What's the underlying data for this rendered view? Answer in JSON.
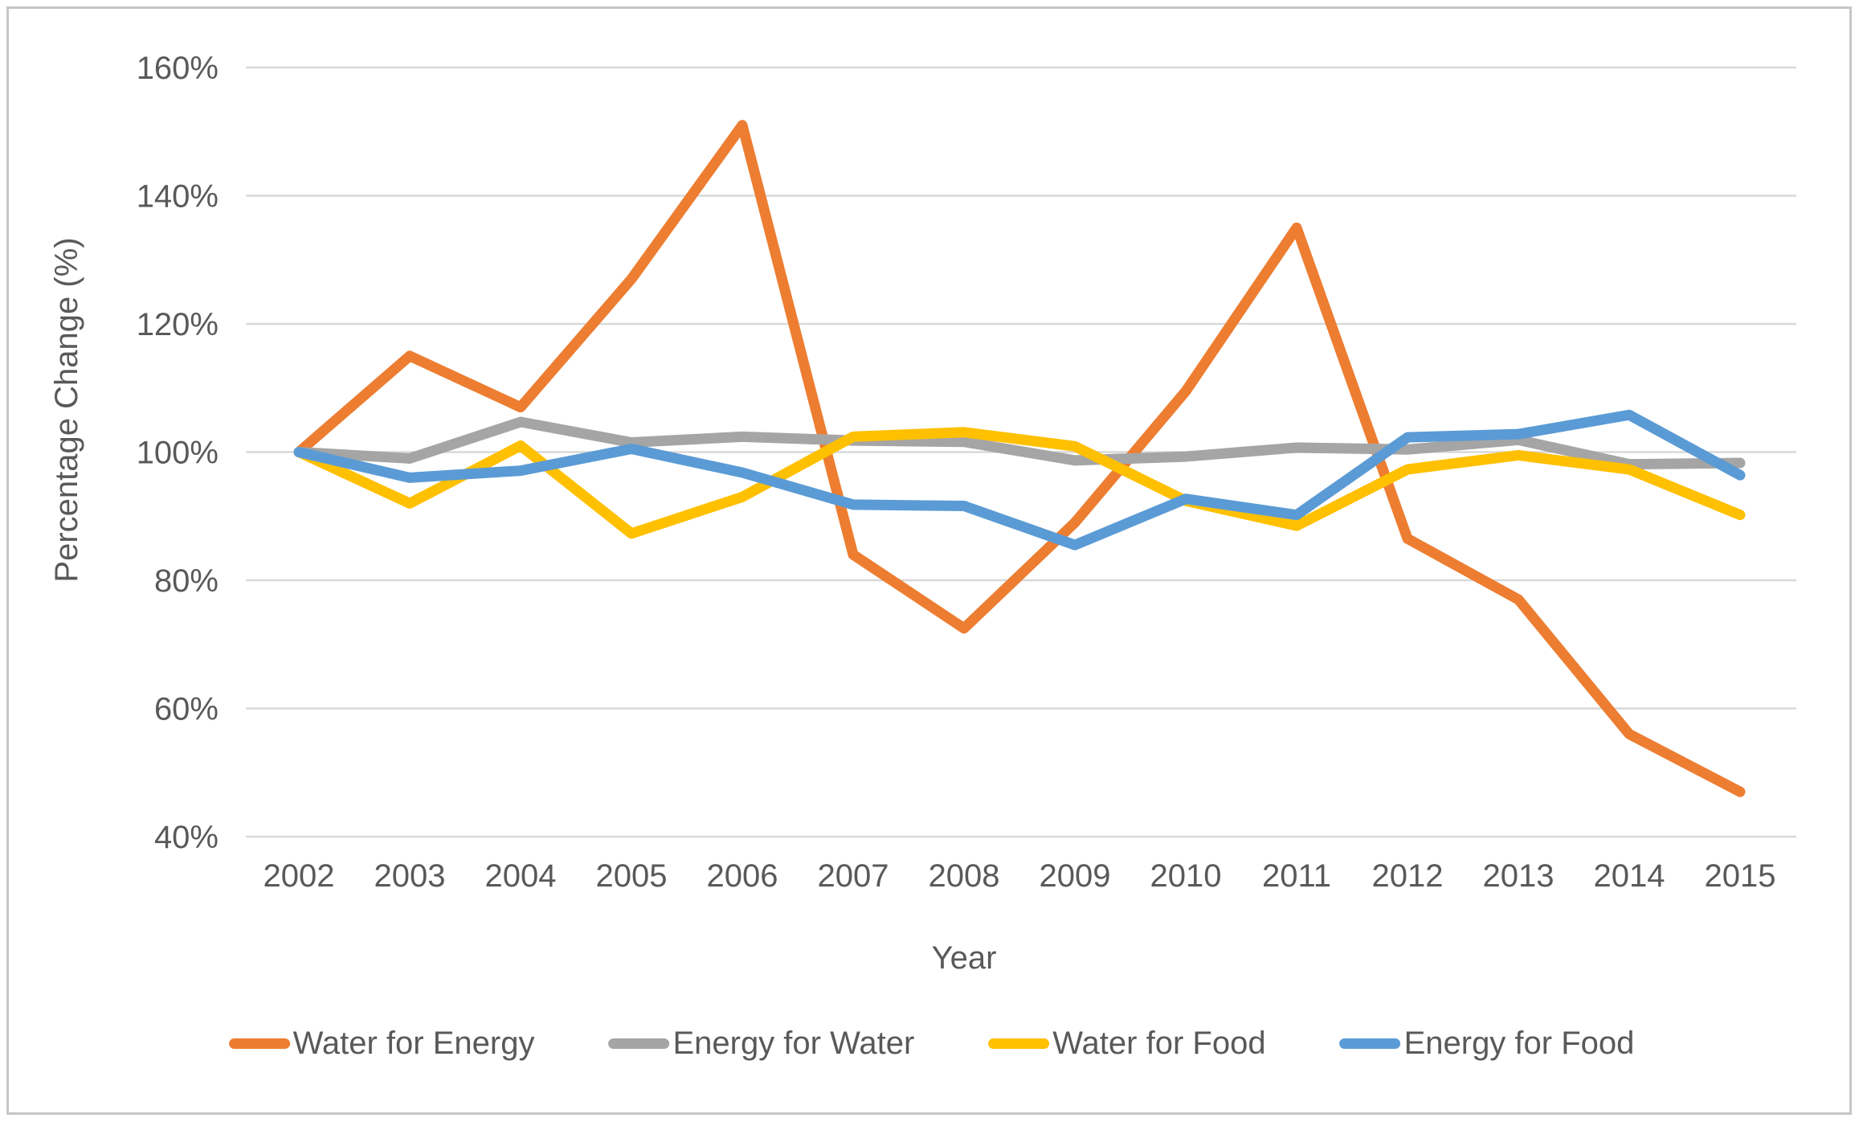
{
  "figure": {
    "background": "#ffffff",
    "border_color": "#c6c6c6",
    "text_color": "#595959",
    "gridline_color": "#d9d9d9"
  },
  "chart_data": {
    "type": "line",
    "title": "",
    "xlabel": "Year",
    "ylabel": "Percentage Change (%)",
    "categories": [
      2002,
      2003,
      2004,
      2005,
      2006,
      2007,
      2008,
      2009,
      2010,
      2011,
      2012,
      2013,
      2014,
      2015
    ],
    "y_ticks": [
      {
        "value": 40,
        "label": "40%"
      },
      {
        "value": 60,
        "label": "60%"
      },
      {
        "value": 80,
        "label": "80%"
      },
      {
        "value": 100,
        "label": "100%"
      },
      {
        "value": 120,
        "label": "120%"
      },
      {
        "value": 140,
        "label": "140%"
      },
      {
        "value": 160,
        "label": "160%"
      }
    ],
    "ylim": [
      40,
      160
    ],
    "grid": "horizontal",
    "legend_position": "bottom",
    "series": [
      {
        "name": "Water for Energy",
        "color": "#ED7D31",
        "values": [
          100,
          115,
          107,
          127,
          151,
          84,
          72.5,
          89,
          109.5,
          135,
          86.5,
          77,
          56,
          47
        ]
      },
      {
        "name": "Energy for Water",
        "color": "#A5A5A5",
        "values": [
          100,
          99,
          104.7,
          101.5,
          102.4,
          101.8,
          101.6,
          98.7,
          99.3,
          100.7,
          100.4,
          101.9,
          98.1,
          98.3
        ]
      },
      {
        "name": "Water for Food",
        "color": "#FFC000",
        "values": [
          100,
          92,
          101,
          87.3,
          93,
          102.4,
          103.1,
          100.9,
          92.4,
          88.5,
          97.3,
          99.5,
          97.3,
          90.2
        ]
      },
      {
        "name": "Energy for Food",
        "color": "#5B9BD5",
        "values": [
          100,
          96,
          97.1,
          100.5,
          96.8,
          91.8,
          91.6,
          85.5,
          92.7,
          90.2,
          102.3,
          102.8,
          105.8,
          96.4
        ]
      }
    ]
  }
}
